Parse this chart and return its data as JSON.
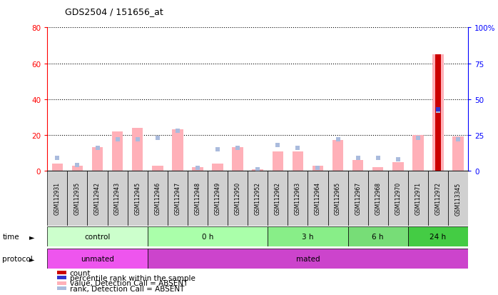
{
  "title": "GDS2504 / 151656_at",
  "samples": [
    "GSM112931",
    "GSM112935",
    "GSM112942",
    "GSM112943",
    "GSM112945",
    "GSM112946",
    "GSM112947",
    "GSM112948",
    "GSM112949",
    "GSM112950",
    "GSM112952",
    "GSM112962",
    "GSM112963",
    "GSM112964",
    "GSM112965",
    "GSM112967",
    "GSM112968",
    "GSM112970",
    "GSM112971",
    "GSM112972",
    "GSM113345"
  ],
  "bar_values_absent": [
    4,
    3,
    13,
    22,
    24,
    3,
    23,
    2,
    4,
    13,
    1,
    11,
    11,
    3,
    17,
    6,
    2,
    5,
    20,
    65,
    19
  ],
  "rank_absent": [
    9,
    4,
    16,
    22,
    22,
    23,
    28,
    2,
    15,
    16,
    1,
    18,
    16,
    2,
    22,
    9,
    9,
    8,
    23,
    42,
    22
  ],
  "count_values": [
    0,
    0,
    0,
    0,
    0,
    0,
    0,
    0,
    0,
    0,
    0,
    0,
    0,
    0,
    0,
    0,
    0,
    0,
    0,
    65,
    0
  ],
  "percentile_rank": [
    0,
    0,
    0,
    0,
    0,
    0,
    0,
    0,
    0,
    0,
    0,
    0,
    0,
    0,
    0,
    0,
    0,
    0,
    0,
    43,
    0
  ],
  "bar_color_absent": "#ffb0b8",
  "rank_color_absent": "#aabbdd",
  "count_color": "#cc0000",
  "percentile_color": "#3333cc",
  "ylim_left": [
    0,
    80
  ],
  "ylim_right": [
    0,
    100
  ],
  "yticks_left": [
    0,
    20,
    40,
    60,
    80
  ],
  "yticks_right": [
    0,
    25,
    50,
    75,
    100
  ],
  "ytick_labels_left": [
    "0",
    "20",
    "40",
    "60",
    "80"
  ],
  "ytick_labels_right": [
    "0",
    "25",
    "50",
    "75",
    "100%"
  ],
  "group_colors": [
    "#ccffcc",
    "#aaffaa",
    "#88ee88",
    "#77dd77",
    "#44cc44"
  ],
  "groups": [
    {
      "label": "control",
      "start": 0,
      "end": 5
    },
    {
      "label": "0 h",
      "start": 5,
      "end": 11
    },
    {
      "label": "3 h",
      "start": 11,
      "end": 15
    },
    {
      "label": "6 h",
      "start": 15,
      "end": 18
    },
    {
      "label": "24 h",
      "start": 18,
      "end": 21
    }
  ],
  "protocol_groups": [
    {
      "label": "unmated",
      "start": 0,
      "end": 5,
      "color": "#ee55ee"
    },
    {
      "label": "mated",
      "start": 5,
      "end": 21,
      "color": "#cc44cc"
    }
  ],
  "legend_items": [
    {
      "label": "count",
      "color": "#cc0000"
    },
    {
      "label": "percentile rank within the sample",
      "color": "#3333cc"
    },
    {
      "label": "value, Detection Call = ABSENT",
      "color": "#ffb0b8"
    },
    {
      "label": "rank, Detection Call = ABSENT",
      "color": "#aabbdd"
    }
  ]
}
